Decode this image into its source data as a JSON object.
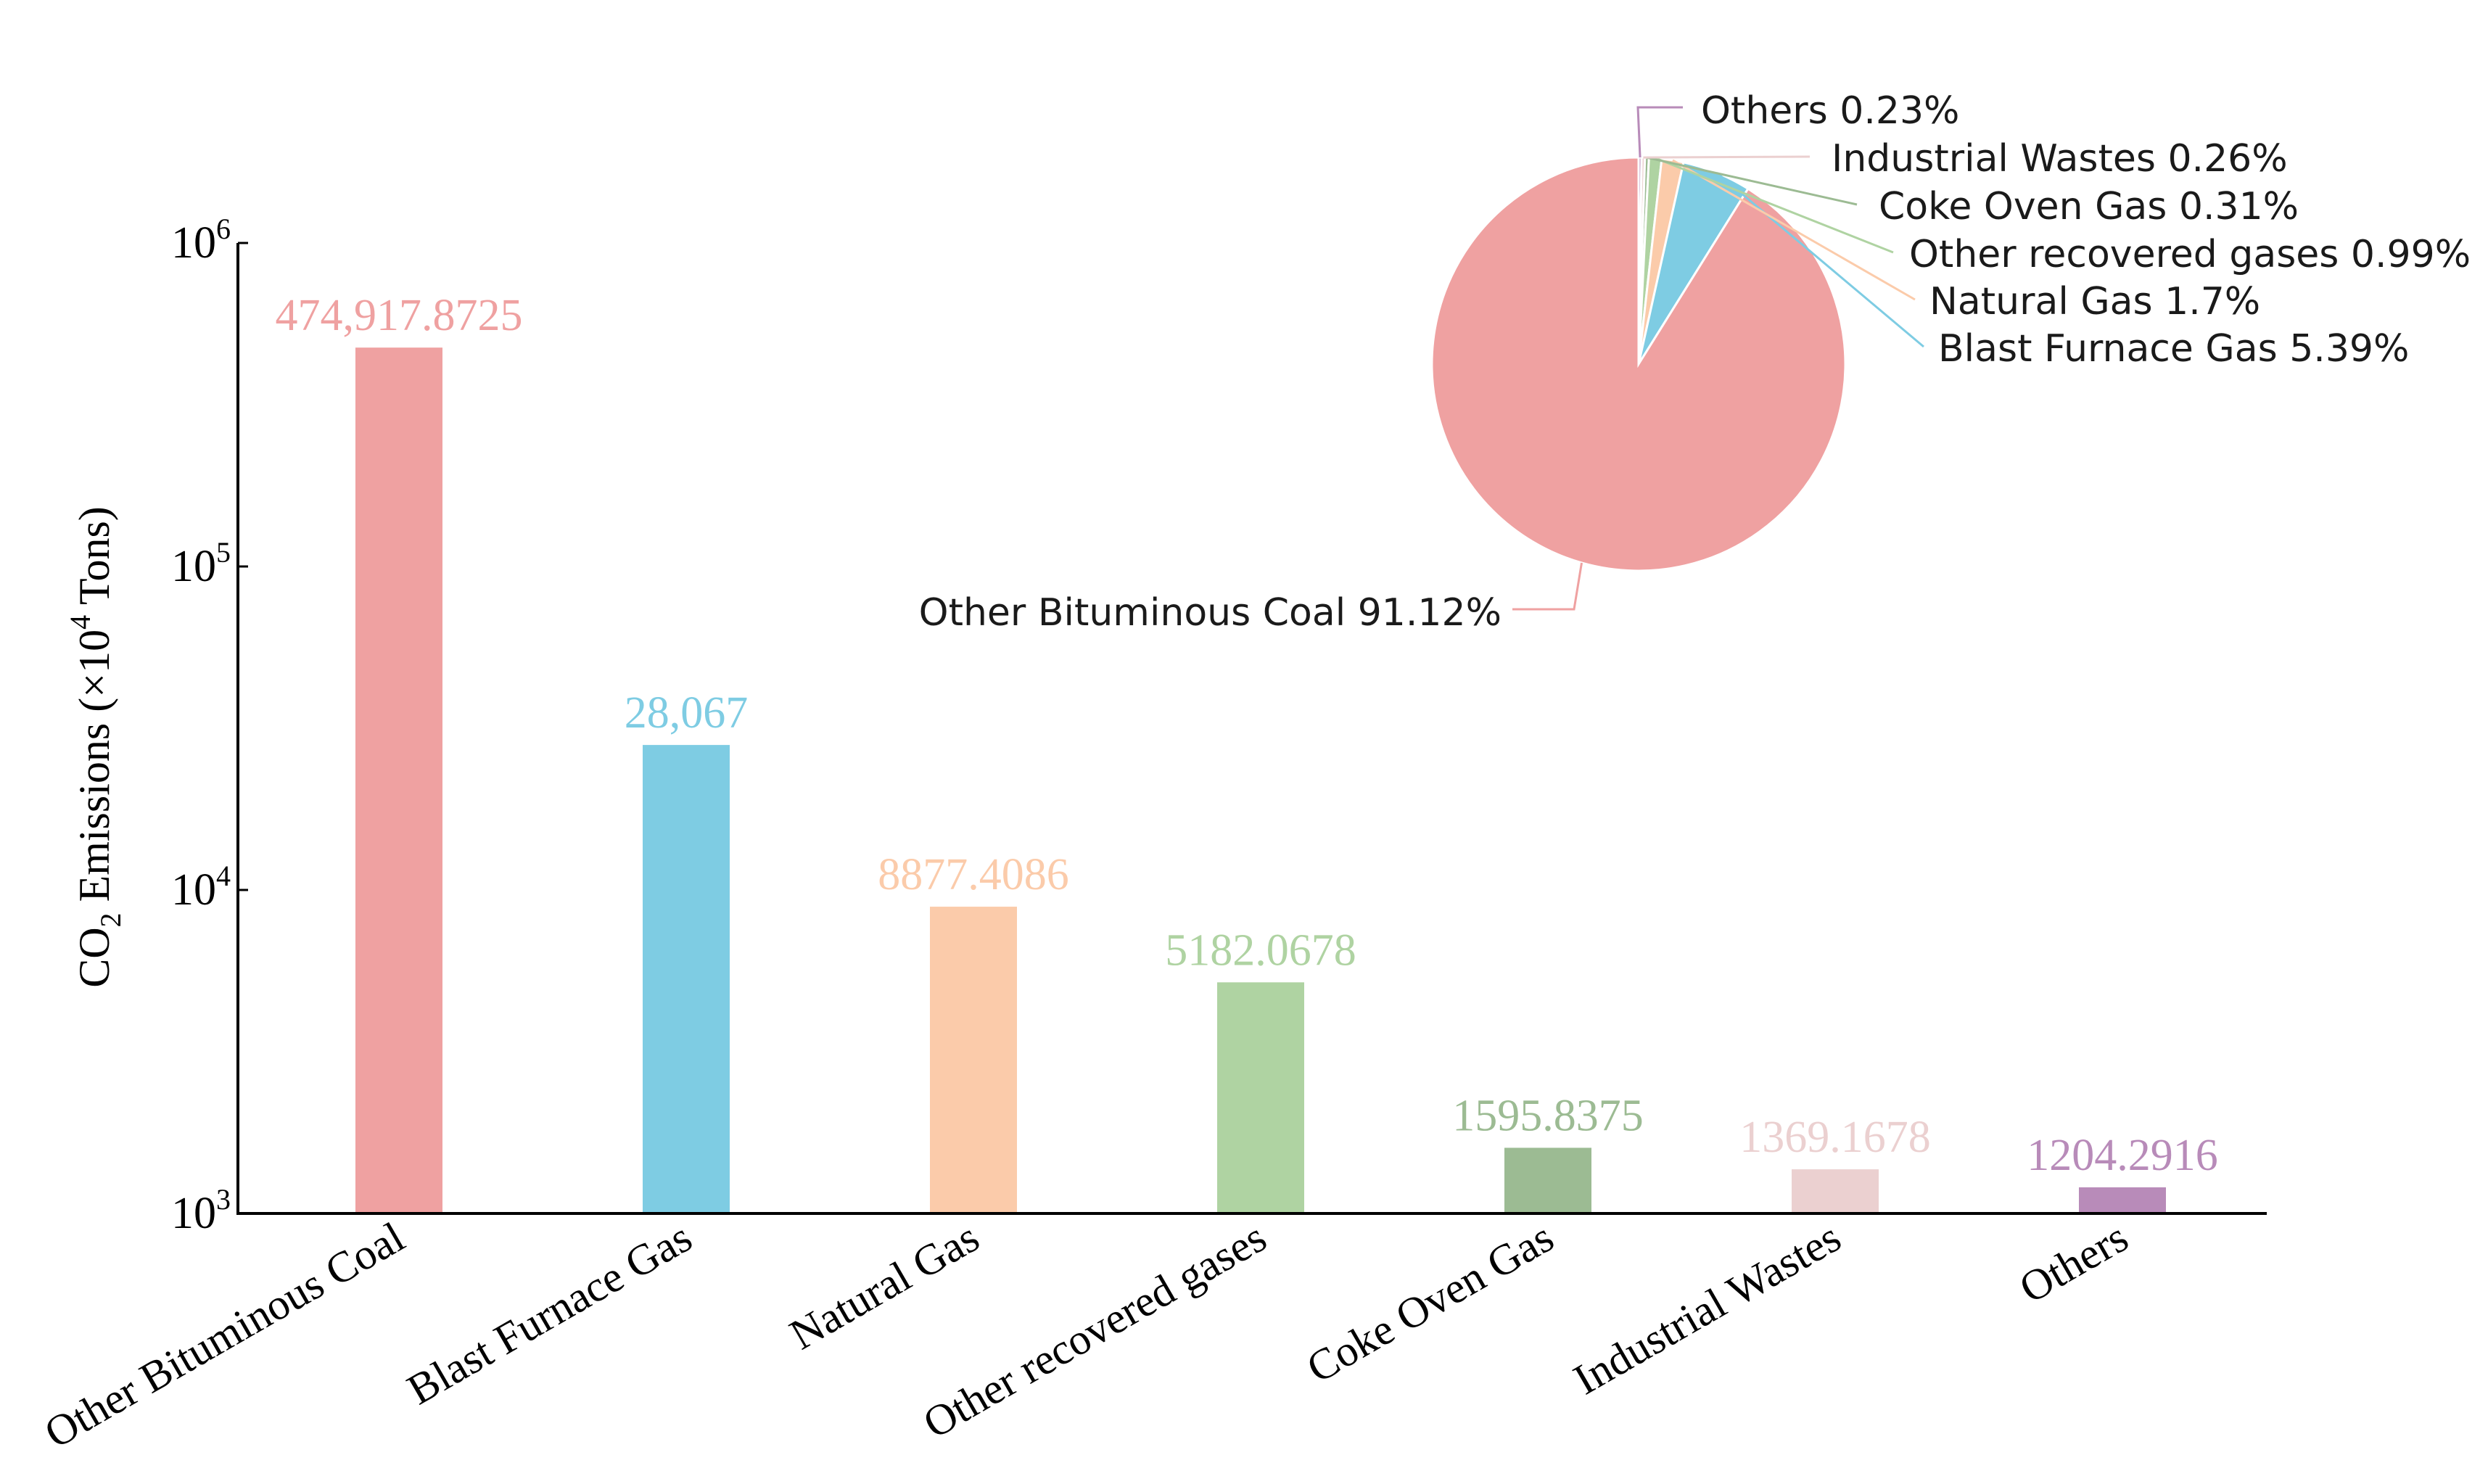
{
  "chart_data": [
    {
      "type": "bar",
      "scale": "log",
      "ylabel": {
        "prefix": "CO",
        "sub": "2",
        "middle": " Emissions (×10",
        "sup": "4",
        "suffix": " Tons)"
      },
      "ylim": [
        1000,
        1000000
      ],
      "yticks": [
        {
          "base": "10",
          "exp": "3",
          "value": 1000
        },
        {
          "base": "10",
          "exp": "4",
          "value": 10000
        },
        {
          "base": "10",
          "exp": "5",
          "value": 100000
        },
        {
          "base": "10",
          "exp": "6",
          "value": 1000000
        }
      ],
      "categories": [
        "Other Bituminous Coal",
        "Blast Furnace Gas",
        "Natural Gas",
        "Other recovered gases",
        "Coke Oven Gas",
        "Industrial Wastes",
        "Others"
      ],
      "values": [
        474917.8725,
        28067,
        8877.4086,
        5182.0678,
        1595.8375,
        1369.1678,
        1204.2916
      ],
      "value_labels": [
        "474,917.8725",
        "28,067",
        "8877.4086",
        "5182.0678",
        "1595.8375",
        "1369.1678",
        "1204.2916"
      ],
      "colors": [
        "#EFA1A1",
        "#7ECCE3",
        "#FBCBAA",
        "#AFD3A2",
        "#9CBB93",
        "#EBD0D0",
        "#B88BB9"
      ]
    },
    {
      "type": "pie",
      "slices": [
        {
          "name": "Other Bituminous Coal",
          "percent": 91.12,
          "label": "Other Bituminous Coal 91.12%",
          "color": "#EFA1A1"
        },
        {
          "name": "Blast Furnace Gas",
          "percent": 5.39,
          "label": "Blast Furnace Gas 5.39%",
          "color": "#7ECCE3"
        },
        {
          "name": "Natural Gas",
          "percent": 1.7,
          "label": "Natural Gas 1.7%",
          "color": "#FBCBAA"
        },
        {
          "name": "Other recovered gases",
          "percent": 0.99,
          "label": "Other recovered gases 0.99%",
          "color": "#AFD3A2"
        },
        {
          "name": "Coke Oven Gas",
          "percent": 0.31,
          "label": "Coke Oven Gas 0.31%",
          "color": "#9CBB93"
        },
        {
          "name": "Industrial Wastes",
          "percent": 0.26,
          "label": "Industrial Wastes 0.26%",
          "color": "#EBD0D0"
        },
        {
          "name": "Others",
          "percent": 0.23,
          "label": "Others 0.23%",
          "color": "#B88BB9"
        }
      ]
    }
  ]
}
